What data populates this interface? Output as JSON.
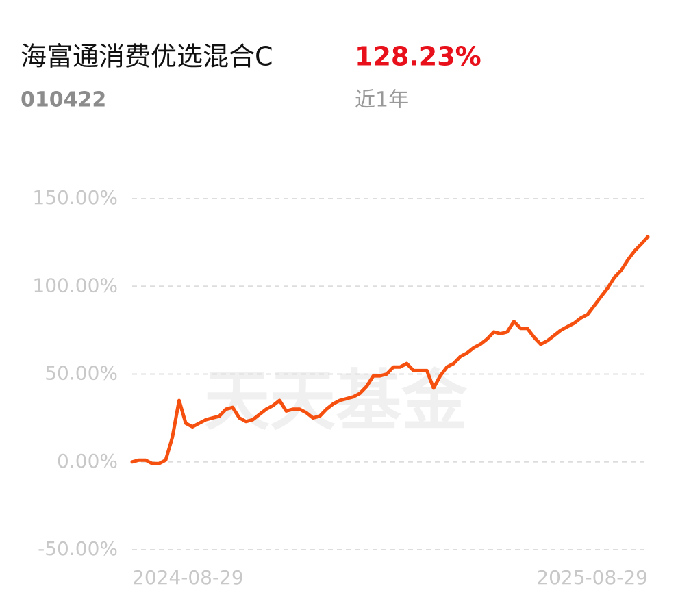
{
  "chart_data": {
    "type": "line",
    "title": "海富通消费优选混合C",
    "code": "010422",
    "return_label": "128.23%",
    "period": "近1年",
    "watermark": "天天基金",
    "categories": [
      "2024-08-29",
      null,
      null,
      null,
      null,
      null,
      null,
      null,
      null,
      null,
      null,
      null,
      null,
      null,
      null,
      null,
      null,
      null,
      null,
      null,
      null,
      null,
      null,
      null,
      null,
      null,
      null,
      null,
      null,
      null,
      null,
      null,
      null,
      null,
      null,
      null,
      null,
      null,
      null,
      null,
      null,
      null,
      null,
      null,
      null,
      null,
      null,
      null,
      null,
      null,
      null,
      null,
      null,
      null,
      null,
      null,
      null,
      null,
      null,
      null,
      null,
      null,
      null,
      null,
      null,
      null,
      null,
      null,
      null,
      null,
      null,
      null,
      null,
      null,
      null,
      null,
      null,
      "2025-08-29"
    ],
    "series": [
      {
        "name": "海富通消费优选混合C",
        "color": "#f5500f",
        "values": [
          0,
          1,
          1,
          -1,
          -1,
          1,
          14,
          35,
          22,
          20,
          22,
          24,
          25,
          26,
          30,
          31,
          25,
          23,
          24,
          27,
          30,
          32,
          35,
          29,
          30,
          30,
          28,
          25,
          26,
          30,
          33,
          35,
          36,
          37,
          39,
          43,
          49,
          49,
          50,
          54,
          54,
          56,
          52,
          52,
          52,
          42,
          49,
          54,
          56,
          60,
          62,
          65,
          67,
          70,
          74,
          73,
          74,
          80,
          76,
          76,
          71,
          67,
          69,
          72,
          75,
          77,
          79,
          82,
          84,
          89,
          94,
          99,
          105,
          109,
          115,
          120,
          124,
          128.23
        ]
      }
    ],
    "ylim": [
      -50,
      150
    ],
    "yticks": [
      {
        "value": 150,
        "label": "150.00%"
      },
      {
        "value": 100,
        "label": "100.00%"
      },
      {
        "value": 50,
        "label": "50.00%"
      },
      {
        "value": 0,
        "label": "0.00%"
      },
      {
        "value": -50,
        "label": "-50.00%"
      }
    ],
    "grid": true
  }
}
